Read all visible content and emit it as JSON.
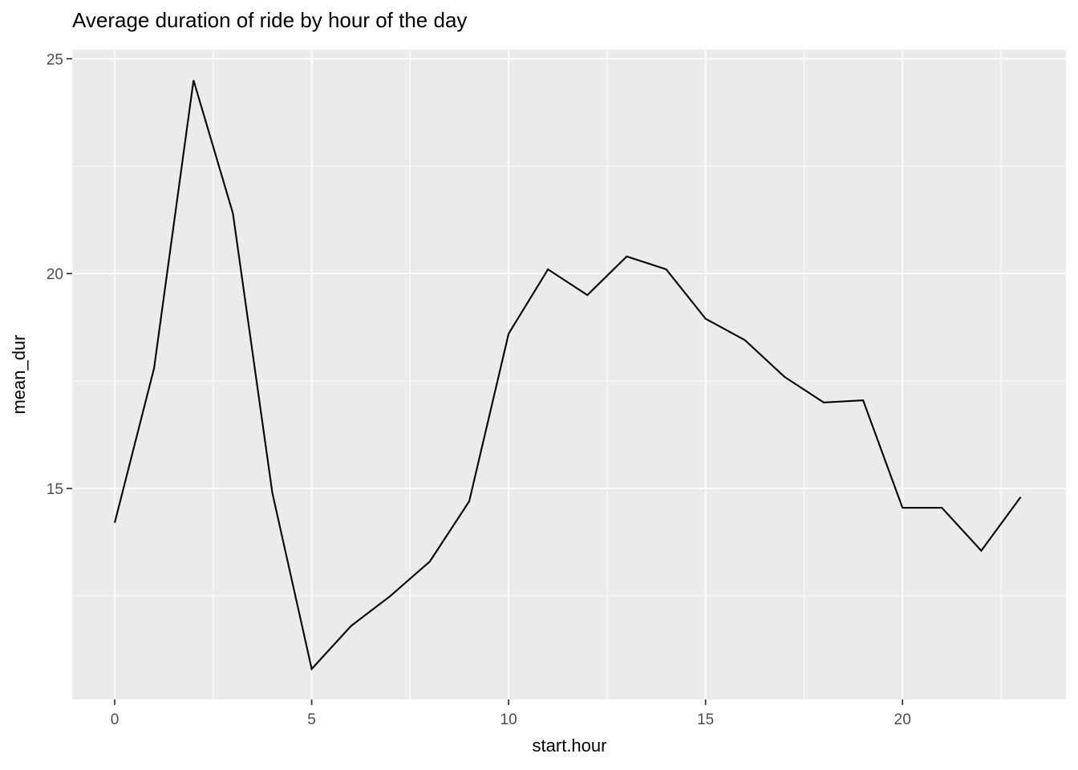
{
  "chart_data": {
    "type": "line",
    "title": "Average duration of ride by hour of the day",
    "xlabel": "start.hour",
    "ylabel": "mean_dur",
    "x": [
      0,
      1,
      2,
      3,
      4,
      5,
      6,
      7,
      8,
      9,
      10,
      11,
      12,
      13,
      14,
      15,
      16,
      17,
      18,
      19,
      20,
      21,
      22,
      23
    ],
    "values": [
      14.2,
      17.8,
      24.5,
      21.4,
      14.9,
      10.8,
      11.8,
      12.5,
      13.3,
      14.7,
      18.6,
      20.1,
      19.5,
      20.4,
      20.1,
      18.95,
      18.45,
      17.6,
      17.0,
      17.05,
      14.55,
      14.55,
      13.55,
      14.8
    ],
    "x_ticks": [
      0,
      5,
      10,
      15,
      20
    ],
    "y_ticks": [
      15,
      20,
      25
    ],
    "x_minor_gridlines": [
      2.5,
      7.5,
      12.5,
      17.5,
      22.5
    ],
    "y_minor_gridlines": [
      12.5,
      17.5,
      22.5
    ],
    "xlim": [
      -1.08,
      24.15
    ],
    "ylim": [
      10.09,
      25.21
    ],
    "grid": true,
    "legend": "none",
    "colors": {
      "panel_background": "#EBEBEB",
      "gridline": "#FFFFFF",
      "line": "#000000",
      "tick_label": "#4D4D4D",
      "tick_mark": "#333333",
      "title_text": "#000000",
      "axis_title_text": "#000000",
      "figure_background": "#FFFFFF"
    }
  }
}
